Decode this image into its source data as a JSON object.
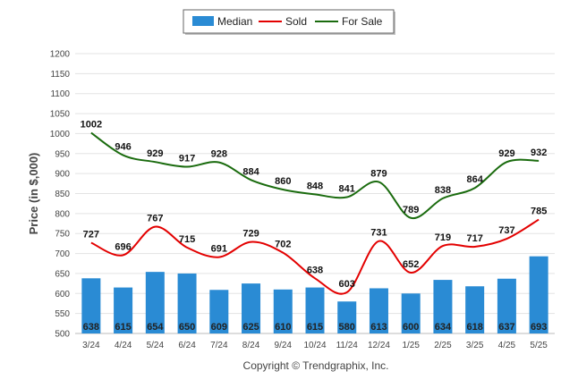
{
  "chart_data": {
    "type": "bar",
    "ylabel": "Price (in $,000)",
    "ylim": [
      500,
      1200
    ],
    "yticks": [
      500,
      550,
      600,
      650,
      700,
      750,
      800,
      850,
      900,
      950,
      1000,
      1050,
      1100,
      1150,
      1200
    ],
    "grid": true,
    "legend_position": "top-center",
    "categories": [
      "3/24",
      "4/24",
      "5/24",
      "6/24",
      "7/24",
      "8/24",
      "9/24",
      "10/24",
      "11/24",
      "12/24",
      "1/25",
      "2/25",
      "3/25",
      "4/25",
      "5/25"
    ],
    "series": [
      {
        "name": "Median",
        "type": "bar",
        "color": "#2a8bd4",
        "values": [
          638,
          615,
          654,
          650,
          609,
          625,
          610,
          615,
          580,
          613,
          600,
          634,
          618,
          637,
          693
        ]
      },
      {
        "name": "Sold",
        "type": "line",
        "color": "#e30000",
        "values": [
          727,
          696,
          767,
          715,
          691,
          729,
          702,
          638,
          603,
          731,
          652,
          719,
          717,
          737,
          785
        ]
      },
      {
        "name": "For Sale",
        "type": "line",
        "color": "#1a6b0e",
        "values": [
          1002,
          946,
          929,
          917,
          928,
          884,
          860,
          848,
          841,
          879,
          789,
          838,
          864,
          929,
          932
        ]
      }
    ]
  },
  "credit": "Copyright © Trendgraphix, Inc."
}
